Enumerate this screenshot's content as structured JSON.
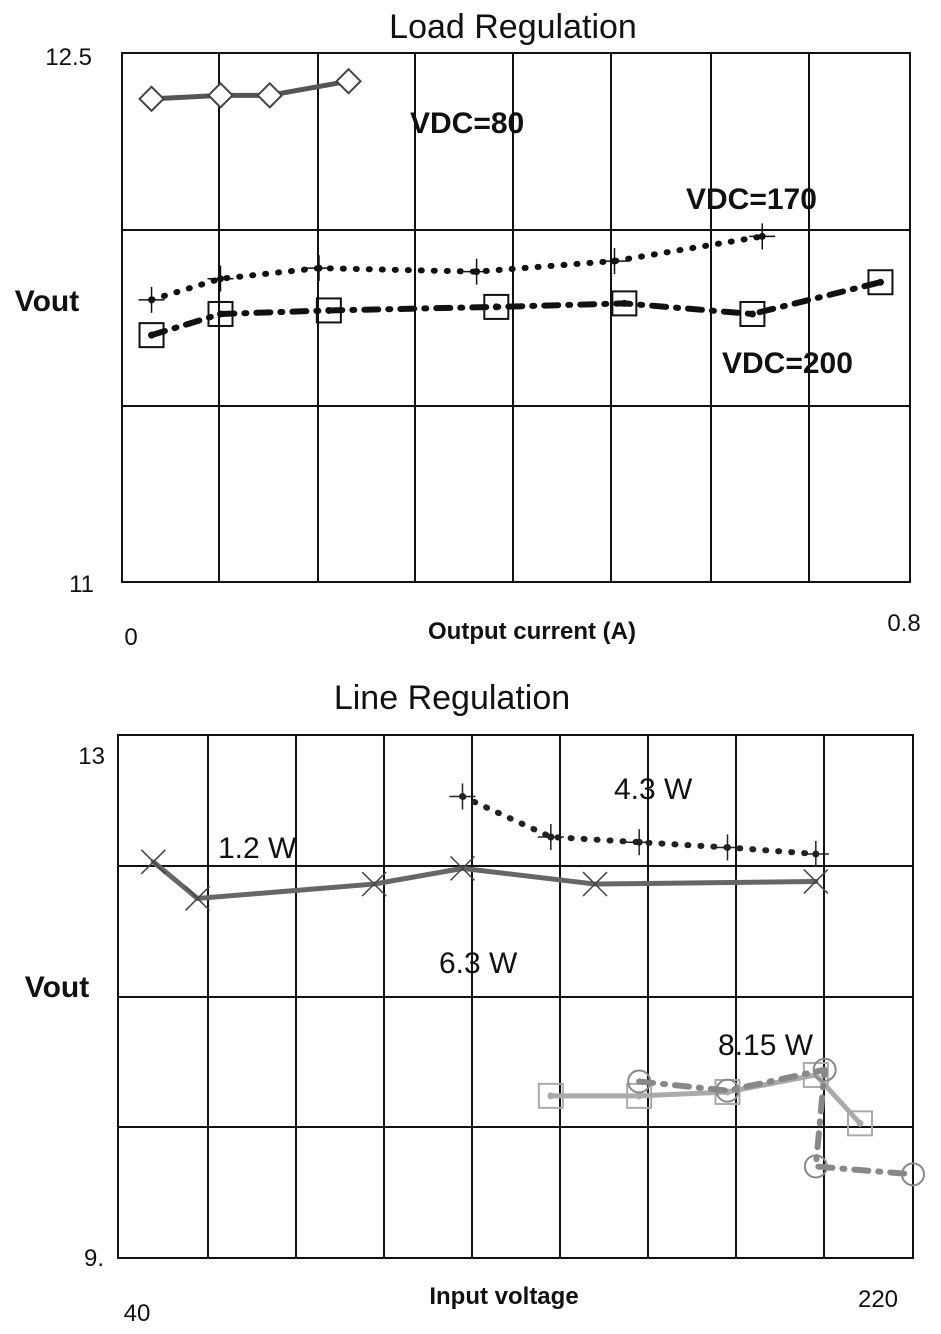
{
  "chart_data": [
    {
      "type": "line",
      "title": "Load Regulation",
      "xlabel": "Output current (A)",
      "ylabel": "Vout",
      "xlim": [
        0,
        0.8
      ],
      "ylim": [
        11,
        12.5
      ],
      "x_tick_labels": [
        "0",
        "0.8"
      ],
      "y_tick_labels": [
        "12.5",
        "11"
      ],
      "grid": true,
      "series": [
        {
          "name": "VDC=80",
          "marker": "diamond",
          "line": "solid",
          "color": "#555555",
          "x": [
            0.03,
            0.1,
            0.15,
            0.23
          ],
          "y": [
            12.37,
            12.38,
            12.38,
            12.42
          ]
        },
        {
          "name": "VDC=170",
          "marker": "plus",
          "line": "dotted",
          "color": "#111111",
          "x": [
            0.03,
            0.1,
            0.2,
            0.36,
            0.5,
            0.65
          ],
          "y": [
            11.8,
            11.86,
            11.89,
            11.88,
            11.91,
            11.98
          ]
        },
        {
          "name": "VDC=200",
          "marker": "square",
          "line": "dash-dot",
          "color": "#111111",
          "x": [
            0.03,
            0.1,
            0.21,
            0.38,
            0.51,
            0.64,
            0.77
          ],
          "y": [
            11.7,
            11.76,
            11.77,
            11.78,
            11.79,
            11.76,
            11.85
          ]
        }
      ]
    },
    {
      "type": "line",
      "title": "Line Regulation",
      "xlabel": "Input voltage",
      "ylabel": "Vout",
      "xlim": [
        40,
        220
      ],
      "ylim": [
        9,
        13
      ],
      "x_tick_labels": [
        "40",
        "220"
      ],
      "y_tick_labels": [
        "13",
        "9."
      ],
      "grid": true,
      "series": [
        {
          "name": "1.2 W",
          "marker": "x",
          "line": "solid",
          "color": "#666666",
          "x": [
            48,
            58,
            98,
            118,
            148,
            198
          ],
          "y": [
            12.03,
            11.75,
            11.86,
            11.98,
            11.86,
            11.88
          ]
        },
        {
          "name": "4.3 W",
          "marker": "plus",
          "line": "dotted",
          "color": "#222222",
          "x": [
            118,
            138,
            158,
            178,
            198
          ],
          "y": [
            12.53,
            12.22,
            12.18,
            12.14,
            12.09
          ]
        },
        {
          "name": "6.3 W",
          "marker": "square",
          "line": "solid",
          "color": "#aaaaaa",
          "x": [
            138,
            158,
            178,
            198,
            208
          ],
          "y": [
            10.24,
            10.24,
            10.27,
            10.4,
            10.03
          ]
        },
        {
          "name": "8.15 W",
          "marker": "circle",
          "line": "dash-dot",
          "color": "#888888",
          "x": [
            158,
            178,
            200,
            198,
            220
          ],
          "y": [
            10.35,
            10.28,
            10.44,
            9.7,
            9.64
          ]
        }
      ]
    }
  ]
}
